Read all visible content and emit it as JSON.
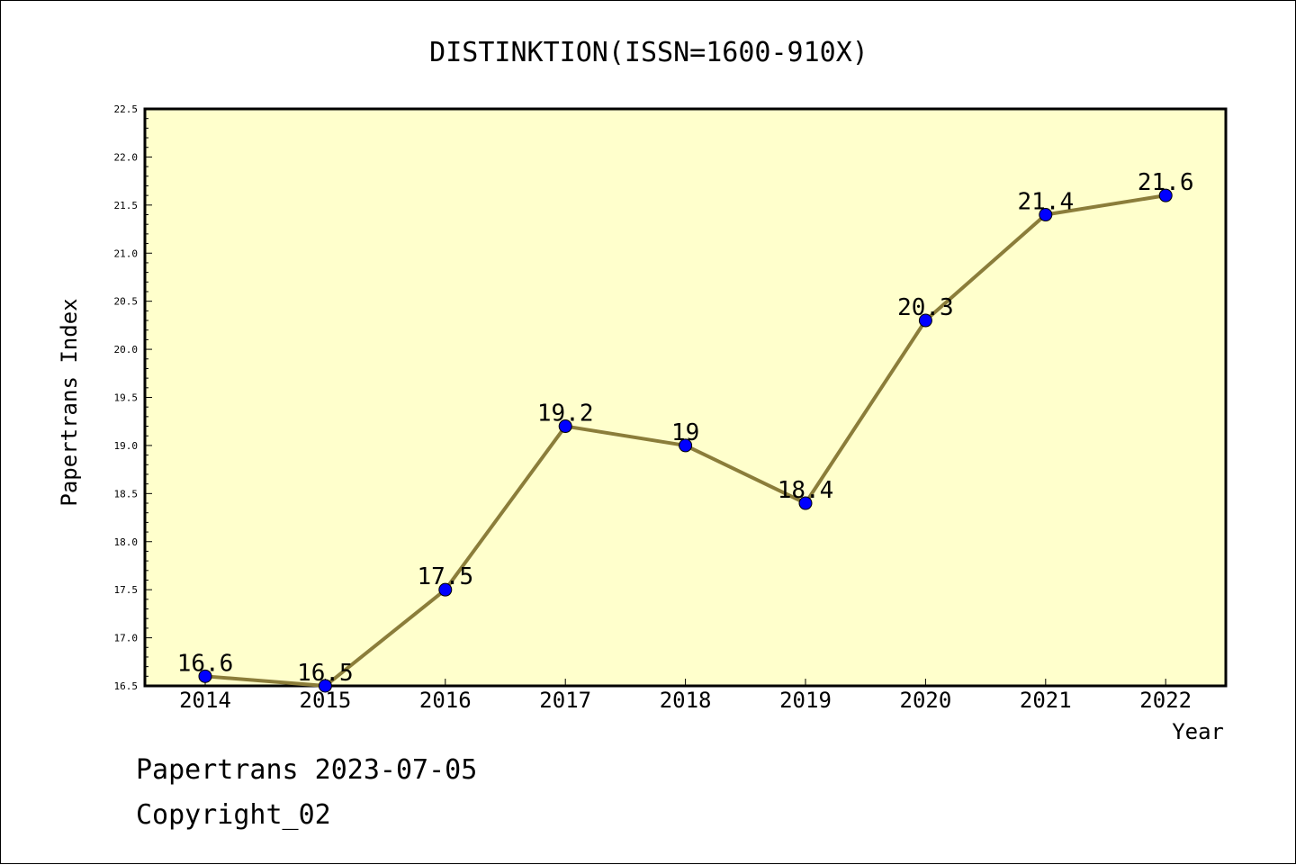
{
  "chart_data": {
    "type": "line",
    "title": "DISTINKTION(ISSN=1600-910X)",
    "xlabel": "Year",
    "ylabel": "Papertrans Index",
    "categories": [
      "2014",
      "2015",
      "2016",
      "2017",
      "2018",
      "2019",
      "2020",
      "2021",
      "2022"
    ],
    "values": [
      16.6,
      16.5,
      17.5,
      19.2,
      19,
      18.4,
      20.3,
      21.4,
      21.6
    ],
    "data_labels": [
      "16.6",
      "16.5",
      "17.5",
      "19.2",
      "19",
      "18.4",
      "20.3",
      "21.4",
      "21.6"
    ],
    "ylim": [
      16.5,
      22.5
    ],
    "yticks": [
      "16.5",
      "17.0",
      "17.5",
      "18.0",
      "18.5",
      "19.0",
      "19.5",
      "20.0",
      "20.5",
      "21.0",
      "21.5",
      "22.0",
      "22.5"
    ],
    "grid": false,
    "colors": {
      "plot_background": "#ffffcc",
      "line": "#8b7d3a",
      "marker": "#0000ff"
    }
  },
  "footer": {
    "line1": "Papertrans 2023-07-05",
    "line2": "Copyright_02"
  }
}
